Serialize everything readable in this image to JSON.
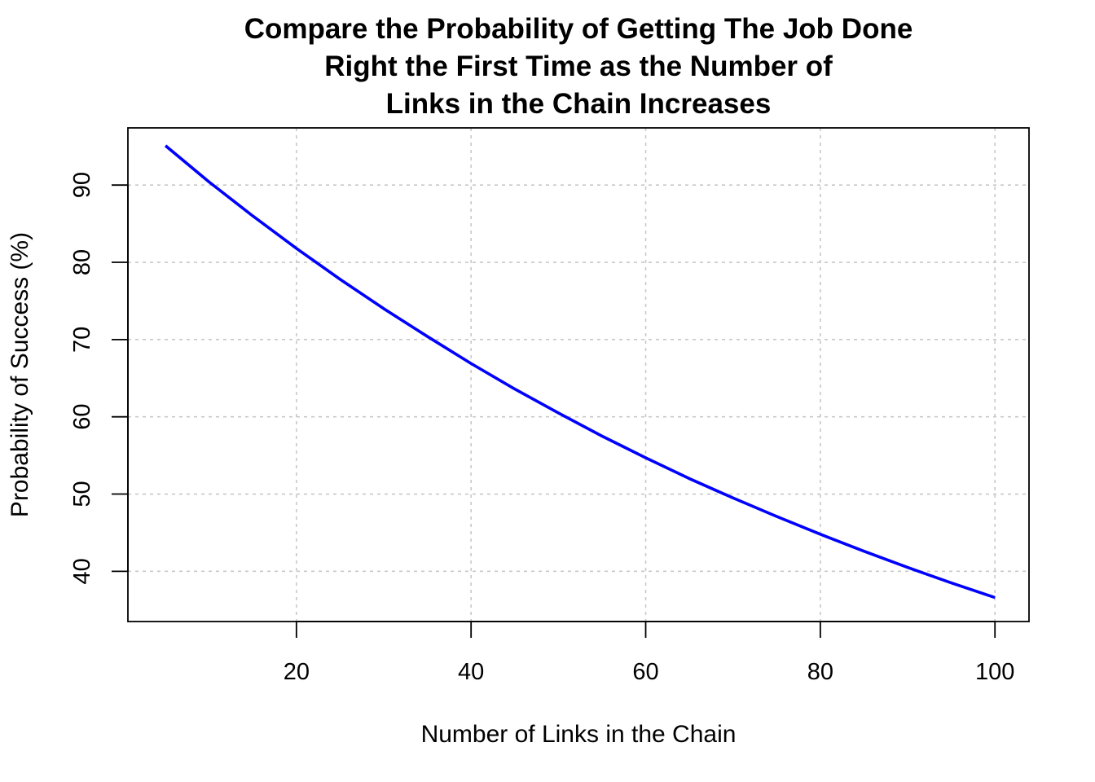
{
  "chart_data": {
    "type": "line",
    "title_lines": [
      "Compare the Probability of Getting The Job Done",
      "Right the First Time as the Number of",
      "Links in the Chain Increases"
    ],
    "xlabel": "Number of Links in the Chain",
    "ylabel": "Probability of Success (%)",
    "xlim": [
      0.7,
      103.9
    ],
    "ylim": [
      33.5,
      97.4
    ],
    "xticks": [
      20,
      40,
      60,
      80,
      100
    ],
    "yticks": [
      40,
      50,
      60,
      70,
      80,
      90
    ],
    "grid": true,
    "line_color": "#0000ff",
    "grid_color": "#c8c8c8",
    "series": [
      {
        "x": [
          5,
          10,
          15,
          20,
          25,
          30,
          35,
          40,
          45,
          50,
          55,
          60,
          65,
          70,
          75,
          80,
          85,
          90,
          95,
          100
        ],
        "values": [
          95.1,
          90.4,
          86.0,
          81.8,
          77.8,
          74.0,
          70.4,
          66.9,
          63.6,
          60.5,
          57.5,
          54.7,
          52.0,
          49.5,
          47.1,
          44.8,
          42.6,
          40.5,
          38.5,
          36.6
        ]
      }
    ]
  }
}
